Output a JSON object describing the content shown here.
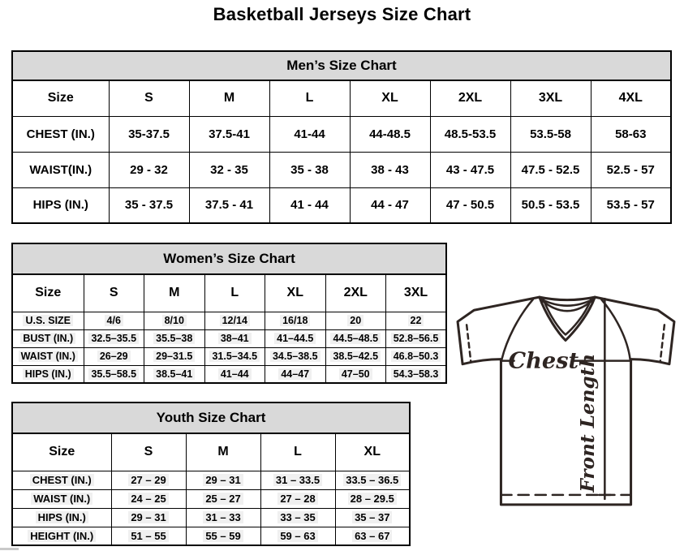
{
  "page_title": "Basketball Jerseys Size Chart",
  "tables": {
    "mens": {
      "title": "Men’s Size Chart",
      "columns": [
        "Size",
        "S",
        "M",
        "L",
        "XL",
        "2XL",
        "3XL",
        "4XL"
      ],
      "rows": [
        {
          "label": "CHEST (IN.)",
          "values": [
            "35-37.5",
            "37.5-41",
            "41-44",
            "44-48.5",
            "48.5-53.5",
            "53.5-58",
            "58-63"
          ]
        },
        {
          "label": "WAIST(IN.)",
          "values": [
            "29 - 32",
            "32 - 35",
            "35 - 38",
            "38 - 43",
            "43 - 47.5",
            "47.5 - 52.5",
            "52.5 - 57"
          ]
        },
        {
          "label": "HIPS (IN.)",
          "values": [
            "35 - 37.5",
            "37.5 - 41",
            "41 - 44",
            "44 - 47",
            "47 - 50.5",
            "50.5 - 53.5",
            "53.5 - 57"
          ]
        }
      ]
    },
    "womens": {
      "title": "Women’s Size Chart",
      "columns": [
        "Size",
        "S",
        "M",
        "L",
        "XL",
        "2XL",
        "3XL"
      ],
      "rows": [
        {
          "label": "U.S. SIZE",
          "values": [
            "4/6",
            "8/10",
            "12/14",
            "16/18",
            "20",
            "22"
          ]
        },
        {
          "label": "BUST (IN.)",
          "values": [
            "32.5–35.5",
            "35.5–38",
            "38–41",
            "41–44.5",
            "44.5–48.5",
            "52.8–56.5"
          ]
        },
        {
          "label": "WAIST (IN.)",
          "values": [
            "26–29",
            "29–31.5",
            "31.5–34.5",
            "34.5–38.5",
            "38.5–42.5",
            "46.8–50.3"
          ]
        },
        {
          "label": "HIPS (IN.)",
          "values": [
            "35.5–58.5",
            "38.5–41",
            "41–44",
            "44–47",
            "47–50",
            "54.3–58.3"
          ]
        }
      ]
    },
    "youth": {
      "title": "Youth Size Chart",
      "columns": [
        "Size",
        "S",
        "M",
        "L",
        "XL"
      ],
      "rows": [
        {
          "label": "CHEST (IN.)",
          "values": [
            "27 – 29",
            "29 – 31",
            "31 – 33.5",
            "33.5 – 36.5"
          ]
        },
        {
          "label": "WAIST (IN.)",
          "values": [
            "24 – 25",
            "25 – 27",
            "27 – 28",
            "28 – 29.5"
          ]
        },
        {
          "label": "HIPS (IN.)",
          "values": [
            "29 – 31",
            "31 – 33",
            "33 – 35",
            "35 – 37"
          ]
        },
        {
          "label": "HEIGHT (IN.)",
          "values": [
            "51 – 55",
            "55 – 59",
            "59 – 63",
            "63 – 67"
          ]
        }
      ]
    }
  },
  "diagram": {
    "chest_label": "Chest",
    "front_length_label": "Front Length",
    "line_color": "#2e2522"
  }
}
